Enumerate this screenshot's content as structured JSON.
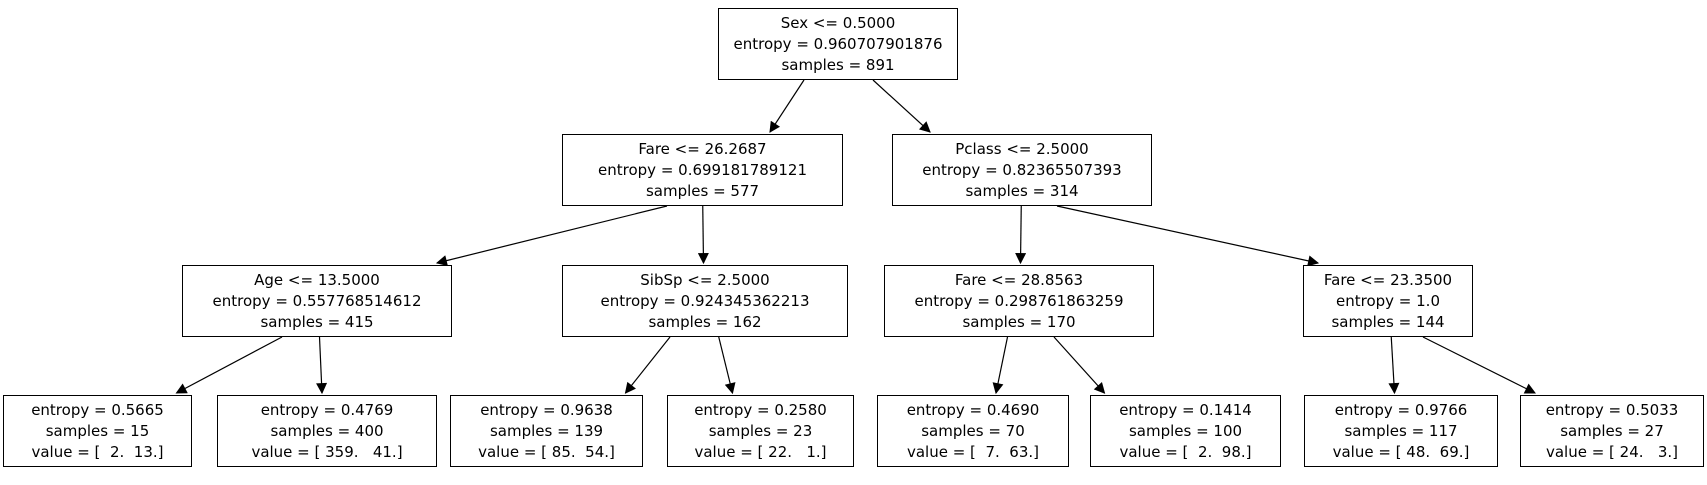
{
  "diagram": {
    "kind": "decision-tree",
    "background_color": "#ffffff",
    "node_border_color": "#000000",
    "text_color": "#000000",
    "edge_color": "#000000"
  },
  "nodes": {
    "root": {
      "lines": [
        "Sex <= 0.5000",
        "entropy = 0.960707901876",
        "samples = 891"
      ]
    },
    "l": {
      "lines": [
        "Fare <= 26.2687",
        "entropy = 0.699181789121",
        "samples = 577"
      ]
    },
    "r": {
      "lines": [
        "Pclass <= 2.5000",
        "entropy = 0.82365507393",
        "samples = 314"
      ]
    },
    "ll": {
      "lines": [
        "Age <= 13.5000",
        "entropy = 0.557768514612",
        "samples = 415"
      ]
    },
    "lr": {
      "lines": [
        "SibSp <= 2.5000",
        "entropy = 0.924345362213",
        "samples = 162"
      ]
    },
    "rl": {
      "lines": [
        "Fare <= 28.8563",
        "entropy = 0.298761863259",
        "samples = 170"
      ]
    },
    "rr": {
      "lines": [
        "Fare <= 23.3500",
        "entropy = 1.0",
        "samples = 144"
      ]
    },
    "lll": {
      "lines": [
        "entropy = 0.5665",
        "samples = 15",
        "value = [  2.  13.]"
      ]
    },
    "llr": {
      "lines": [
        "entropy = 0.4769",
        "samples = 400",
        "value = [ 359.   41.]"
      ]
    },
    "lrl": {
      "lines": [
        "entropy = 0.9638",
        "samples = 139",
        "value = [ 85.  54.]"
      ]
    },
    "lrr": {
      "lines": [
        "entropy = 0.2580",
        "samples = 23",
        "value = [ 22.   1.]"
      ]
    },
    "rll": {
      "lines": [
        "entropy = 0.4690",
        "samples = 70",
        "value = [  7.  63.]"
      ]
    },
    "rlr": {
      "lines": [
        "entropy = 0.1414",
        "samples = 100",
        "value = [  2.  98.]"
      ]
    },
    "rrl": {
      "lines": [
        "entropy = 0.9766",
        "samples = 117",
        "value = [ 48.  69.]"
      ]
    },
    "rrr": {
      "lines": [
        "entropy = 0.5033",
        "samples = 27",
        "value = [ 24.   3.]"
      ]
    }
  },
  "edges": [
    [
      "root",
      "l"
    ],
    [
      "root",
      "r"
    ],
    [
      "l",
      "ll"
    ],
    [
      "l",
      "lr"
    ],
    [
      "r",
      "rl"
    ],
    [
      "r",
      "rr"
    ],
    [
      "ll",
      "lll"
    ],
    [
      "ll",
      "llr"
    ],
    [
      "lr",
      "lrl"
    ],
    [
      "lr",
      "lrr"
    ],
    [
      "rl",
      "rll"
    ],
    [
      "rl",
      "rlr"
    ],
    [
      "rr",
      "rrl"
    ],
    [
      "rr",
      "rrr"
    ]
  ]
}
